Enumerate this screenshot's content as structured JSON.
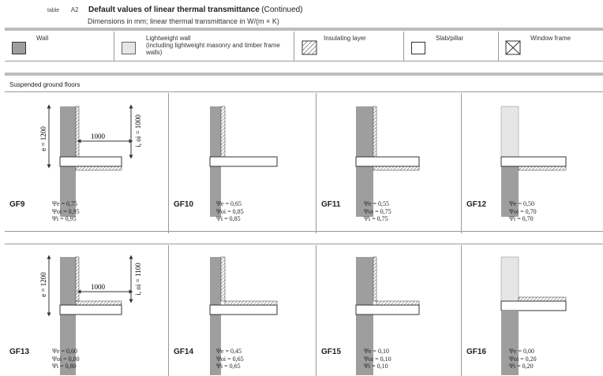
{
  "header": {
    "table_label": "table",
    "table_number": "A2",
    "title": "Default values of linear thermal transmittance",
    "title_suffix": "(Continued)",
    "subtitle": "Dimensions in mm; linear thermal transmittance in W/(m × K)"
  },
  "legend": [
    {
      "label": "Wall",
      "sub": "",
      "color": "#9e9e9e"
    },
    {
      "label": "Lightweight wall",
      "sub": "(including lightweight masonry and timber frame walls)",
      "color": "#e6e6e6"
    },
    {
      "label": "Insulating layer",
      "sub": "",
      "color": "hatch"
    },
    {
      "label": "Slab/pillar",
      "sub": "",
      "color": "#ffffff"
    },
    {
      "label": "Window frame",
      "sub": "",
      "color": "cross"
    }
  ],
  "section_title": "Suspended ground floors",
  "dims": {
    "e_row1": "e = 1200",
    "h_row1": "1000",
    "i_row1": "i, oi = 1000",
    "e_row2": "e = 1200",
    "h_row2": "1000",
    "i_row2": "i, oi = 1100"
  },
  "row1": [
    {
      "code": "GF9",
      "psi_e": "Ψe = 0,75",
      "psi_oi": "Ψoi = 0,95",
      "psi_i": "Ψi = 0,95"
    },
    {
      "code": "GF10",
      "psi_e": "Ψe = 0,65",
      "psi_oi": "Ψoi = 0,85",
      "psi_i": "Ψi = 0,85"
    },
    {
      "code": "GF11",
      "psi_e": "Ψe = 0,55",
      "psi_oi": "Ψoi = 0,75",
      "psi_i": "Ψi = 0,75"
    },
    {
      "code": "GF12",
      "psi_e": "Ψe = 0,50",
      "psi_oi": "Ψoi = 0,70",
      "psi_i": "Ψi = 0,70"
    }
  ],
  "row2": [
    {
      "code": "GF13",
      "psi_e": "Ψe = 0,60",
      "psi_oi": "Ψoi = 0,80",
      "psi_i": "Ψi = 0,80"
    },
    {
      "code": "GF14",
      "psi_e": "Ψe = 0,45",
      "psi_oi": "Ψoi = 0,65",
      "psi_i": "Ψi = 0,65"
    },
    {
      "code": "GF15",
      "psi_e": "Ψe = 0,10",
      "psi_oi": "Ψoi = 0,10",
      "psi_i": "Ψi = 0,10"
    },
    {
      "code": "GF16",
      "psi_e": "Ψe = 0,00",
      "psi_oi": "Ψoi = 0,20",
      "psi_i": "Ψi = 0,20"
    }
  ]
}
